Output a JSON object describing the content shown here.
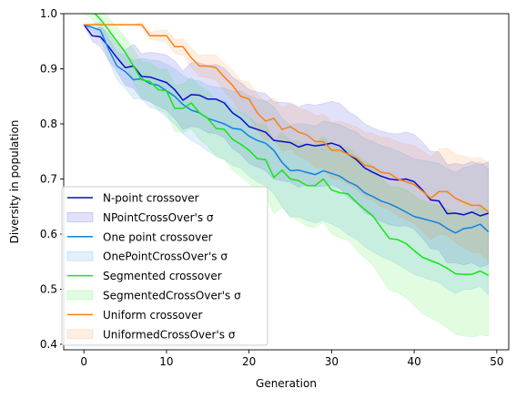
{
  "chart_data": {
    "type": "line",
    "xlabel": "Generation",
    "ylabel": "Diversity in population",
    "xlim": [
      -2.45,
      51.45
    ],
    "ylim": [
      0.39,
      1.0
    ],
    "xticks": [
      0,
      10,
      20,
      30,
      40,
      50
    ],
    "yticks": [
      0.4,
      0.5,
      0.6,
      0.7,
      0.8,
      0.9,
      1.0
    ],
    "grid": false,
    "legend": "lower-left",
    "x": [
      0,
      1,
      2,
      3,
      4,
      5,
      6,
      7,
      8,
      9,
      10,
      11,
      12,
      13,
      14,
      15,
      16,
      17,
      18,
      19,
      20,
      21,
      22,
      23,
      24,
      25,
      26,
      27,
      28,
      29,
      30,
      31,
      32,
      33,
      34,
      35,
      36,
      37,
      38,
      39,
      40,
      41,
      42,
      43,
      44,
      45,
      46,
      47,
      48,
      49
    ],
    "series": [
      {
        "name": "N-point crossover",
        "band_name": "NPointCrossOver's σ",
        "color": "#0a0ad2",
        "values": [
          0.98,
          0.96,
          0.958,
          0.94,
          0.92,
          0.902,
          0.905,
          0.886,
          0.885,
          0.88,
          0.875,
          0.862,
          0.843,
          0.853,
          0.852,
          0.845,
          0.845,
          0.838,
          0.82,
          0.81,
          0.795,
          0.79,
          0.785,
          0.77,
          0.768,
          0.766,
          0.758,
          0.763,
          0.76,
          0.762,
          0.765,
          0.76,
          0.745,
          0.735,
          0.72,
          0.712,
          0.705,
          0.7,
          0.698,
          0.7,
          0.695,
          0.68,
          0.662,
          0.66,
          0.637,
          0.638,
          0.635,
          0.64,
          0.633,
          0.638
        ],
        "lower": [
          0.98,
          0.95,
          0.94,
          0.915,
          0.895,
          0.87,
          0.865,
          0.845,
          0.84,
          0.832,
          0.825,
          0.81,
          0.79,
          0.795,
          0.793,
          0.784,
          0.782,
          0.775,
          0.755,
          0.745,
          0.728,
          0.722,
          0.715,
          0.7,
          0.697,
          0.694,
          0.685,
          0.69,
          0.686,
          0.687,
          0.689,
          0.683,
          0.667,
          0.656,
          0.64,
          0.631,
          0.623,
          0.617,
          0.614,
          0.615,
          0.609,
          0.593,
          0.574,
          0.571,
          0.548,
          0.548,
          0.544,
          0.548,
          0.54,
          0.545
        ],
        "upper": [
          0.98,
          0.97,
          0.976,
          0.965,
          0.945,
          0.934,
          0.945,
          0.927,
          0.93,
          0.928,
          0.925,
          0.914,
          0.896,
          0.911,
          0.911,
          0.906,
          0.908,
          0.901,
          0.885,
          0.875,
          0.862,
          0.858,
          0.855,
          0.84,
          0.839,
          0.838,
          0.831,
          0.836,
          0.834,
          0.837,
          0.841,
          0.837,
          0.823,
          0.814,
          0.8,
          0.793,
          0.787,
          0.783,
          0.782,
          0.785,
          0.781,
          0.767,
          0.75,
          0.749,
          0.726,
          0.728,
          0.726,
          0.732,
          0.726,
          0.731
        ]
      },
      {
        "name": "One point crossover",
        "band_name": "OnePointCrossOver's σ",
        "color": "#0b84e0",
        "values": [
          0.98,
          0.975,
          0.97,
          0.935,
          0.905,
          0.895,
          0.88,
          0.882,
          0.873,
          0.87,
          0.86,
          0.85,
          0.835,
          0.825,
          0.82,
          0.81,
          0.805,
          0.8,
          0.792,
          0.79,
          0.778,
          0.77,
          0.765,
          0.752,
          0.73,
          0.715,
          0.716,
          0.712,
          0.708,
          0.715,
          0.71,
          0.705,
          0.695,
          0.688,
          0.675,
          0.668,
          0.66,
          0.655,
          0.648,
          0.64,
          0.632,
          0.628,
          0.624,
          0.62,
          0.61,
          0.602,
          0.61,
          0.612,
          0.618,
          0.604
        ],
        "lower": [
          0.98,
          0.968,
          0.955,
          0.915,
          0.88,
          0.865,
          0.845,
          0.845,
          0.83,
          0.825,
          0.812,
          0.8,
          0.782,
          0.77,
          0.762,
          0.75,
          0.743,
          0.735,
          0.725,
          0.72,
          0.705,
          0.695,
          0.688,
          0.673,
          0.65,
          0.632,
          0.631,
          0.625,
          0.62,
          0.625,
          0.618,
          0.611,
          0.599,
          0.591,
          0.577,
          0.568,
          0.559,
          0.553,
          0.545,
          0.536,
          0.527,
          0.522,
          0.517,
          0.512,
          0.501,
          0.492,
          0.499,
          0.5,
          0.505,
          0.49
        ],
        "upper": [
          0.98,
          0.982,
          0.985,
          0.955,
          0.93,
          0.925,
          0.915,
          0.919,
          0.916,
          0.915,
          0.908,
          0.9,
          0.888,
          0.88,
          0.878,
          0.87,
          0.867,
          0.865,
          0.859,
          0.86,
          0.851,
          0.845,
          0.842,
          0.831,
          0.81,
          0.798,
          0.801,
          0.799,
          0.796,
          0.805,
          0.802,
          0.799,
          0.791,
          0.785,
          0.773,
          0.768,
          0.761,
          0.757,
          0.751,
          0.744,
          0.737,
          0.734,
          0.731,
          0.728,
          0.719,
          0.712,
          0.721,
          0.724,
          0.731,
          0.718
        ]
      },
      {
        "name": "Segmented crossover",
        "band_name": "SegmentedCrossOver's σ",
        "color": "#14e614",
        "values": [
          1.0,
          1.005,
          0.99,
          0.97,
          0.95,
          0.93,
          0.905,
          0.88,
          0.877,
          0.862,
          0.86,
          0.828,
          0.828,
          0.838,
          0.82,
          0.81,
          0.792,
          0.79,
          0.772,
          0.763,
          0.752,
          0.737,
          0.735,
          0.703,
          0.716,
          0.7,
          0.697,
          0.688,
          0.688,
          0.7,
          0.68,
          0.675,
          0.673,
          0.658,
          0.645,
          0.633,
          0.612,
          0.592,
          0.59,
          0.583,
          0.57,
          0.558,
          0.552,
          0.546,
          0.538,
          0.528,
          0.527,
          0.527,
          0.533,
          0.525
        ],
        "lower": [
          1.0,
          0.99,
          0.97,
          0.948,
          0.925,
          0.902,
          0.875,
          0.848,
          0.842,
          0.825,
          0.82,
          0.786,
          0.784,
          0.792,
          0.772,
          0.76,
          0.74,
          0.736,
          0.716,
          0.705,
          0.692,
          0.675,
          0.671,
          0.637,
          0.648,
          0.63,
          0.625,
          0.614,
          0.612,
          0.622,
          0.6,
          0.593,
          0.589,
          0.572,
          0.557,
          0.543,
          0.52,
          0.498,
          0.494,
          0.485,
          0.47,
          0.456,
          0.448,
          0.44,
          0.43,
          0.418,
          0.415,
          0.413,
          0.417,
          0.415
        ],
        "upper": [
          1.0,
          1.02,
          1.01,
          0.992,
          0.975,
          0.958,
          0.935,
          0.912,
          0.912,
          0.899,
          0.9,
          0.87,
          0.872,
          0.884,
          0.868,
          0.86,
          0.844,
          0.844,
          0.828,
          0.821,
          0.812,
          0.799,
          0.799,
          0.769,
          0.784,
          0.77,
          0.769,
          0.762,
          0.764,
          0.778,
          0.76,
          0.757,
          0.757,
          0.744,
          0.733,
          0.723,
          0.704,
          0.686,
          0.686,
          0.681,
          0.67,
          0.66,
          0.656,
          0.652,
          0.646,
          0.638,
          0.639,
          0.641,
          0.649,
          0.635
        ]
      },
      {
        "name": "Uniform crossover",
        "band_name": "UniformedCrossOver's σ",
        "color": "#fe7f0e",
        "values": [
          0.98,
          0.98,
          0.98,
          0.98,
          0.98,
          0.98,
          0.98,
          0.98,
          0.96,
          0.96,
          0.96,
          0.94,
          0.94,
          0.92,
          0.905,
          0.905,
          0.902,
          0.885,
          0.87,
          0.85,
          0.845,
          0.82,
          0.805,
          0.81,
          0.79,
          0.795,
          0.785,
          0.78,
          0.768,
          0.768,
          0.752,
          0.752,
          0.745,
          0.738,
          0.725,
          0.722,
          0.712,
          0.71,
          0.7,
          0.695,
          0.69,
          0.678,
          0.665,
          0.677,
          0.677,
          0.665,
          0.658,
          0.652,
          0.652,
          0.64
        ],
        "lower": [
          0.98,
          0.98,
          0.98,
          0.98,
          0.98,
          0.98,
          0.98,
          0.975,
          0.953,
          0.951,
          0.949,
          0.927,
          0.925,
          0.903,
          0.886,
          0.884,
          0.879,
          0.86,
          0.843,
          0.821,
          0.814,
          0.787,
          0.77,
          0.773,
          0.751,
          0.754,
          0.742,
          0.735,
          0.721,
          0.719,
          0.701,
          0.699,
          0.69,
          0.681,
          0.666,
          0.661,
          0.649,
          0.645,
          0.633,
          0.626,
          0.619,
          0.605,
          0.59,
          0.6,
          0.598,
          0.584,
          0.575,
          0.567,
          0.565,
          0.551
        ],
        "upper": [
          0.98,
          0.98,
          0.98,
          0.98,
          0.98,
          0.98,
          0.98,
          0.985,
          0.967,
          0.969,
          0.971,
          0.953,
          0.955,
          0.937,
          0.924,
          0.926,
          0.925,
          0.91,
          0.897,
          0.879,
          0.876,
          0.853,
          0.84,
          0.847,
          0.829,
          0.836,
          0.828,
          0.825,
          0.815,
          0.817,
          0.803,
          0.805,
          0.8,
          0.795,
          0.784,
          0.783,
          0.775,
          0.775,
          0.767,
          0.764,
          0.761,
          0.751,
          0.74,
          0.754,
          0.756,
          0.746,
          0.741,
          0.737,
          0.739,
          0.729
        ]
      }
    ]
  }
}
